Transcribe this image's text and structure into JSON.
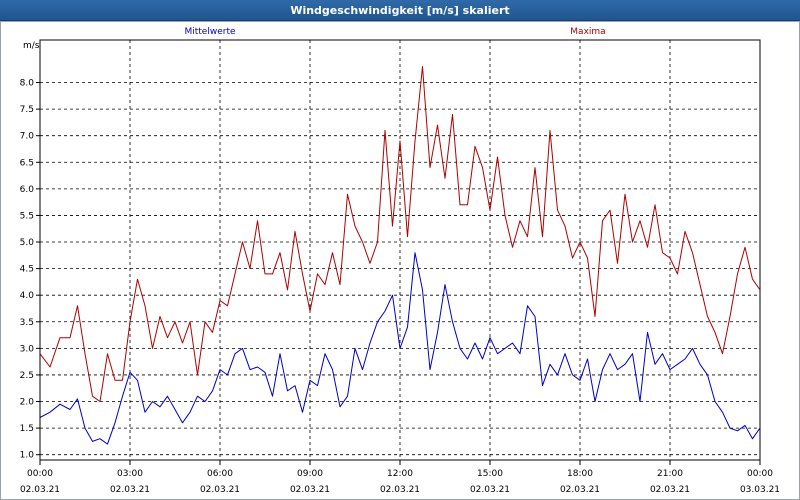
{
  "window": {
    "title": "Windgeschwindigkeit [m/s] skaliert"
  },
  "chart_data": {
    "type": "line",
    "title": "Windgeschwindigkeit [m/s] skaliert",
    "ylabel": "m/s",
    "xlabel": "",
    "ylim": [
      0.9,
      8.8
    ],
    "yticks": [
      "1.0",
      "1.5",
      "2.0",
      "2.5",
      "3.0",
      "3.5",
      "4.0",
      "4.5",
      "5.0",
      "5.5",
      "6.0",
      "6.5",
      "7.0",
      "7.5",
      "8.0"
    ],
    "xlim": [
      "2021-03-02T00:00",
      "2021-03-03T00:00"
    ],
    "xticks": [
      {
        "time": "00:00",
        "date": "02.03.21"
      },
      {
        "time": "03:00",
        "date": "02.03.21"
      },
      {
        "time": "06:00",
        "date": "02.03.21"
      },
      {
        "time": "09:00",
        "date": "02.03.21"
      },
      {
        "time": "12:00",
        "date": "02.03.21"
      },
      {
        "time": "15:00",
        "date": "02.03.21"
      },
      {
        "time": "18:00",
        "date": "02.03.21"
      },
      {
        "time": "21:00",
        "date": "02.03.21"
      },
      {
        "time": "00:00",
        "date": "03.03.21"
      }
    ],
    "grid": true,
    "series": [
      {
        "name": "Mittelwerte",
        "color": "#0000c8",
        "points": [
          [
            "2021-03-02T00:00",
            1.7
          ],
          [
            "2021-03-02T00:20",
            1.8
          ],
          [
            "2021-03-02T00:40",
            1.95
          ],
          [
            "2021-03-02T01:00",
            1.85
          ],
          [
            "2021-03-02T01:15",
            2.05
          ],
          [
            "2021-03-02T01:30",
            1.5
          ],
          [
            "2021-03-02T01:45",
            1.25
          ],
          [
            "2021-03-02T02:00",
            1.3
          ],
          [
            "2021-03-02T02:15",
            1.2
          ],
          [
            "2021-03-02T02:30",
            1.6
          ],
          [
            "2021-03-02T02:45",
            2.1
          ],
          [
            "2021-03-02T03:00",
            2.55
          ],
          [
            "2021-03-02T03:15",
            2.4
          ],
          [
            "2021-03-02T03:30",
            1.8
          ],
          [
            "2021-03-02T03:45",
            2.0
          ],
          [
            "2021-03-02T04:00",
            1.9
          ],
          [
            "2021-03-02T04:15",
            2.1
          ],
          [
            "2021-03-02T04:30",
            1.85
          ],
          [
            "2021-03-02T04:45",
            1.6
          ],
          [
            "2021-03-02T05:00",
            1.8
          ],
          [
            "2021-03-02T05:15",
            2.1
          ],
          [
            "2021-03-02T05:30",
            2.0
          ],
          [
            "2021-03-02T05:45",
            2.2
          ],
          [
            "2021-03-02T06:00",
            2.6
          ],
          [
            "2021-03-02T06:15",
            2.5
          ],
          [
            "2021-03-02T06:30",
            2.9
          ],
          [
            "2021-03-02T06:45",
            3.0
          ],
          [
            "2021-03-02T07:00",
            2.6
          ],
          [
            "2021-03-02T07:15",
            2.65
          ],
          [
            "2021-03-02T07:30",
            2.55
          ],
          [
            "2021-03-02T07:45",
            2.1
          ],
          [
            "2021-03-02T08:00",
            2.9
          ],
          [
            "2021-03-02T08:15",
            2.2
          ],
          [
            "2021-03-02T08:30",
            2.3
          ],
          [
            "2021-03-02T08:45",
            1.8
          ],
          [
            "2021-03-02T09:00",
            2.4
          ],
          [
            "2021-03-02T09:15",
            2.3
          ],
          [
            "2021-03-02T09:30",
            2.9
          ],
          [
            "2021-03-02T09:45",
            2.6
          ],
          [
            "2021-03-02T10:00",
            1.9
          ],
          [
            "2021-03-02T10:15",
            2.1
          ],
          [
            "2021-03-02T10:30",
            3.0
          ],
          [
            "2021-03-02T10:45",
            2.6
          ],
          [
            "2021-03-02T11:00",
            3.1
          ],
          [
            "2021-03-02T11:15",
            3.5
          ],
          [
            "2021-03-02T11:30",
            3.7
          ],
          [
            "2021-03-02T11:45",
            4.0
          ],
          [
            "2021-03-02T12:00",
            3.0
          ],
          [
            "2021-03-02T12:15",
            3.4
          ],
          [
            "2021-03-02T12:30",
            4.8
          ],
          [
            "2021-03-02T12:45",
            4.1
          ],
          [
            "2021-03-02T13:00",
            2.6
          ],
          [
            "2021-03-02T13:15",
            3.3
          ],
          [
            "2021-03-02T13:30",
            4.2
          ],
          [
            "2021-03-02T13:45",
            3.5
          ],
          [
            "2021-03-02T14:00",
            3.0
          ],
          [
            "2021-03-02T14:15",
            2.8
          ],
          [
            "2021-03-02T14:30",
            3.1
          ],
          [
            "2021-03-02T14:45",
            2.8
          ],
          [
            "2021-03-02T15:00",
            3.2
          ],
          [
            "2021-03-02T15:15",
            2.9
          ],
          [
            "2021-03-02T15:30",
            3.0
          ],
          [
            "2021-03-02T15:45",
            3.1
          ],
          [
            "2021-03-02T16:00",
            2.9
          ],
          [
            "2021-03-02T16:15",
            3.8
          ],
          [
            "2021-03-02T16:30",
            3.6
          ],
          [
            "2021-03-02T16:45",
            2.3
          ],
          [
            "2021-03-02T17:00",
            2.7
          ],
          [
            "2021-03-02T17:15",
            2.5
          ],
          [
            "2021-03-02T17:30",
            2.9
          ],
          [
            "2021-03-02T17:45",
            2.5
          ],
          [
            "2021-03-02T18:00",
            2.4
          ],
          [
            "2021-03-02T18:15",
            2.8
          ],
          [
            "2021-03-02T18:30",
            2.0
          ],
          [
            "2021-03-02T18:45",
            2.6
          ],
          [
            "2021-03-02T19:00",
            2.9
          ],
          [
            "2021-03-02T19:15",
            2.6
          ],
          [
            "2021-03-02T19:30",
            2.7
          ],
          [
            "2021-03-02T19:45",
            2.9
          ],
          [
            "2021-03-02T20:00",
            2.0
          ],
          [
            "2021-03-02T20:15",
            3.3
          ],
          [
            "2021-03-02T20:30",
            2.7
          ],
          [
            "2021-03-02T20:45",
            2.9
          ],
          [
            "2021-03-02T21:00",
            2.6
          ],
          [
            "2021-03-02T21:15",
            2.7
          ],
          [
            "2021-03-02T21:30",
            2.8
          ],
          [
            "2021-03-02T21:45",
            3.0
          ],
          [
            "2021-03-02T22:00",
            2.7
          ],
          [
            "2021-03-02T22:15",
            2.5
          ],
          [
            "2021-03-02T22:30",
            2.0
          ],
          [
            "2021-03-02T22:45",
            1.8
          ],
          [
            "2021-03-02T23:00",
            1.5
          ],
          [
            "2021-03-02T23:15",
            1.45
          ],
          [
            "2021-03-02T23:30",
            1.55
          ],
          [
            "2021-03-02T23:45",
            1.3
          ],
          [
            "2021-03-03T00:00",
            1.5
          ]
        ]
      },
      {
        "name": "Maxima",
        "color": "#b00000",
        "points": [
          [
            "2021-03-02T00:00",
            2.9
          ],
          [
            "2021-03-02T00:20",
            2.65
          ],
          [
            "2021-03-02T00:40",
            3.2
          ],
          [
            "2021-03-02T01:00",
            3.2
          ],
          [
            "2021-03-02T01:15",
            3.8
          ],
          [
            "2021-03-02T01:30",
            2.9
          ],
          [
            "2021-03-02T01:45",
            2.1
          ],
          [
            "2021-03-02T02:00",
            2.0
          ],
          [
            "2021-03-02T02:15",
            2.9
          ],
          [
            "2021-03-02T02:30",
            2.4
          ],
          [
            "2021-03-02T02:45",
            2.4
          ],
          [
            "2021-03-02T03:00",
            3.5
          ],
          [
            "2021-03-02T03:15",
            4.3
          ],
          [
            "2021-03-02T03:30",
            3.8
          ],
          [
            "2021-03-02T03:45",
            3.0
          ],
          [
            "2021-03-02T04:00",
            3.6
          ],
          [
            "2021-03-02T04:15",
            3.2
          ],
          [
            "2021-03-02T04:30",
            3.5
          ],
          [
            "2021-03-02T04:45",
            3.1
          ],
          [
            "2021-03-02T05:00",
            3.5
          ],
          [
            "2021-03-02T05:15",
            2.5
          ],
          [
            "2021-03-02T05:30",
            3.5
          ],
          [
            "2021-03-02T05:45",
            3.3
          ],
          [
            "2021-03-02T06:00",
            3.9
          ],
          [
            "2021-03-02T06:15",
            3.8
          ],
          [
            "2021-03-02T06:30",
            4.4
          ],
          [
            "2021-03-02T06:45",
            5.0
          ],
          [
            "2021-03-02T07:00",
            4.5
          ],
          [
            "2021-03-02T07:15",
            5.4
          ],
          [
            "2021-03-02T07:30",
            4.4
          ],
          [
            "2021-03-02T07:45",
            4.4
          ],
          [
            "2021-03-02T08:00",
            4.8
          ],
          [
            "2021-03-02T08:15",
            4.1
          ],
          [
            "2021-03-02T08:30",
            5.2
          ],
          [
            "2021-03-02T08:45",
            4.4
          ],
          [
            "2021-03-02T09:00",
            3.7
          ],
          [
            "2021-03-02T09:15",
            4.4
          ],
          [
            "2021-03-02T09:30",
            4.2
          ],
          [
            "2021-03-02T09:45",
            4.8
          ],
          [
            "2021-03-02T10:00",
            4.2
          ],
          [
            "2021-03-02T10:15",
            5.9
          ],
          [
            "2021-03-02T10:30",
            5.3
          ],
          [
            "2021-03-02T10:45",
            5.0
          ],
          [
            "2021-03-02T11:00",
            4.6
          ],
          [
            "2021-03-02T11:15",
            5.0
          ],
          [
            "2021-03-02T11:30",
            7.1
          ],
          [
            "2021-03-02T11:45",
            5.3
          ],
          [
            "2021-03-02T12:00",
            6.9
          ],
          [
            "2021-03-02T12:15",
            5.1
          ],
          [
            "2021-03-02T12:30",
            6.9
          ],
          [
            "2021-03-02T12:45",
            8.3
          ],
          [
            "2021-03-02T13:00",
            6.4
          ],
          [
            "2021-03-02T13:15",
            7.2
          ],
          [
            "2021-03-02T13:30",
            6.2
          ],
          [
            "2021-03-02T13:45",
            7.4
          ],
          [
            "2021-03-02T14:00",
            5.7
          ],
          [
            "2021-03-02T14:15",
            5.7
          ],
          [
            "2021-03-02T14:30",
            6.8
          ],
          [
            "2021-03-02T14:45",
            6.4
          ],
          [
            "2021-03-02T15:00",
            5.6
          ],
          [
            "2021-03-02T15:15",
            6.6
          ],
          [
            "2021-03-02T15:30",
            5.5
          ],
          [
            "2021-03-02T15:45",
            4.9
          ],
          [
            "2021-03-02T16:00",
            5.4
          ],
          [
            "2021-03-02T16:15",
            5.1
          ],
          [
            "2021-03-02T16:30",
            6.4
          ],
          [
            "2021-03-02T16:45",
            5.1
          ],
          [
            "2021-03-02T17:00",
            7.1
          ],
          [
            "2021-03-02T17:15",
            5.6
          ],
          [
            "2021-03-02T17:30",
            5.3
          ],
          [
            "2021-03-02T17:45",
            4.7
          ],
          [
            "2021-03-02T18:00",
            5.0
          ],
          [
            "2021-03-02T18:15",
            4.7
          ],
          [
            "2021-03-02T18:30",
            3.6
          ],
          [
            "2021-03-02T18:45",
            5.4
          ],
          [
            "2021-03-02T19:00",
            5.6
          ],
          [
            "2021-03-02T19:15",
            4.6
          ],
          [
            "2021-03-02T19:30",
            5.9
          ],
          [
            "2021-03-02T19:45",
            5.0
          ],
          [
            "2021-03-02T20:00",
            5.4
          ],
          [
            "2021-03-02T20:15",
            4.9
          ],
          [
            "2021-03-02T20:30",
            5.7
          ],
          [
            "2021-03-02T20:45",
            4.8
          ],
          [
            "2021-03-02T21:00",
            4.7
          ],
          [
            "2021-03-02T21:15",
            4.4
          ],
          [
            "2021-03-02T21:30",
            5.2
          ],
          [
            "2021-03-02T21:45",
            4.8
          ],
          [
            "2021-03-02T22:00",
            4.2
          ],
          [
            "2021-03-02T22:15",
            3.6
          ],
          [
            "2021-03-02T22:30",
            3.3
          ],
          [
            "2021-03-02T22:45",
            2.9
          ],
          [
            "2021-03-02T23:00",
            3.6
          ],
          [
            "2021-03-02T23:15",
            4.4
          ],
          [
            "2021-03-02T23:30",
            4.9
          ],
          [
            "2021-03-02T23:45",
            4.3
          ],
          [
            "2021-03-03T00:00",
            4.1
          ]
        ]
      }
    ]
  }
}
